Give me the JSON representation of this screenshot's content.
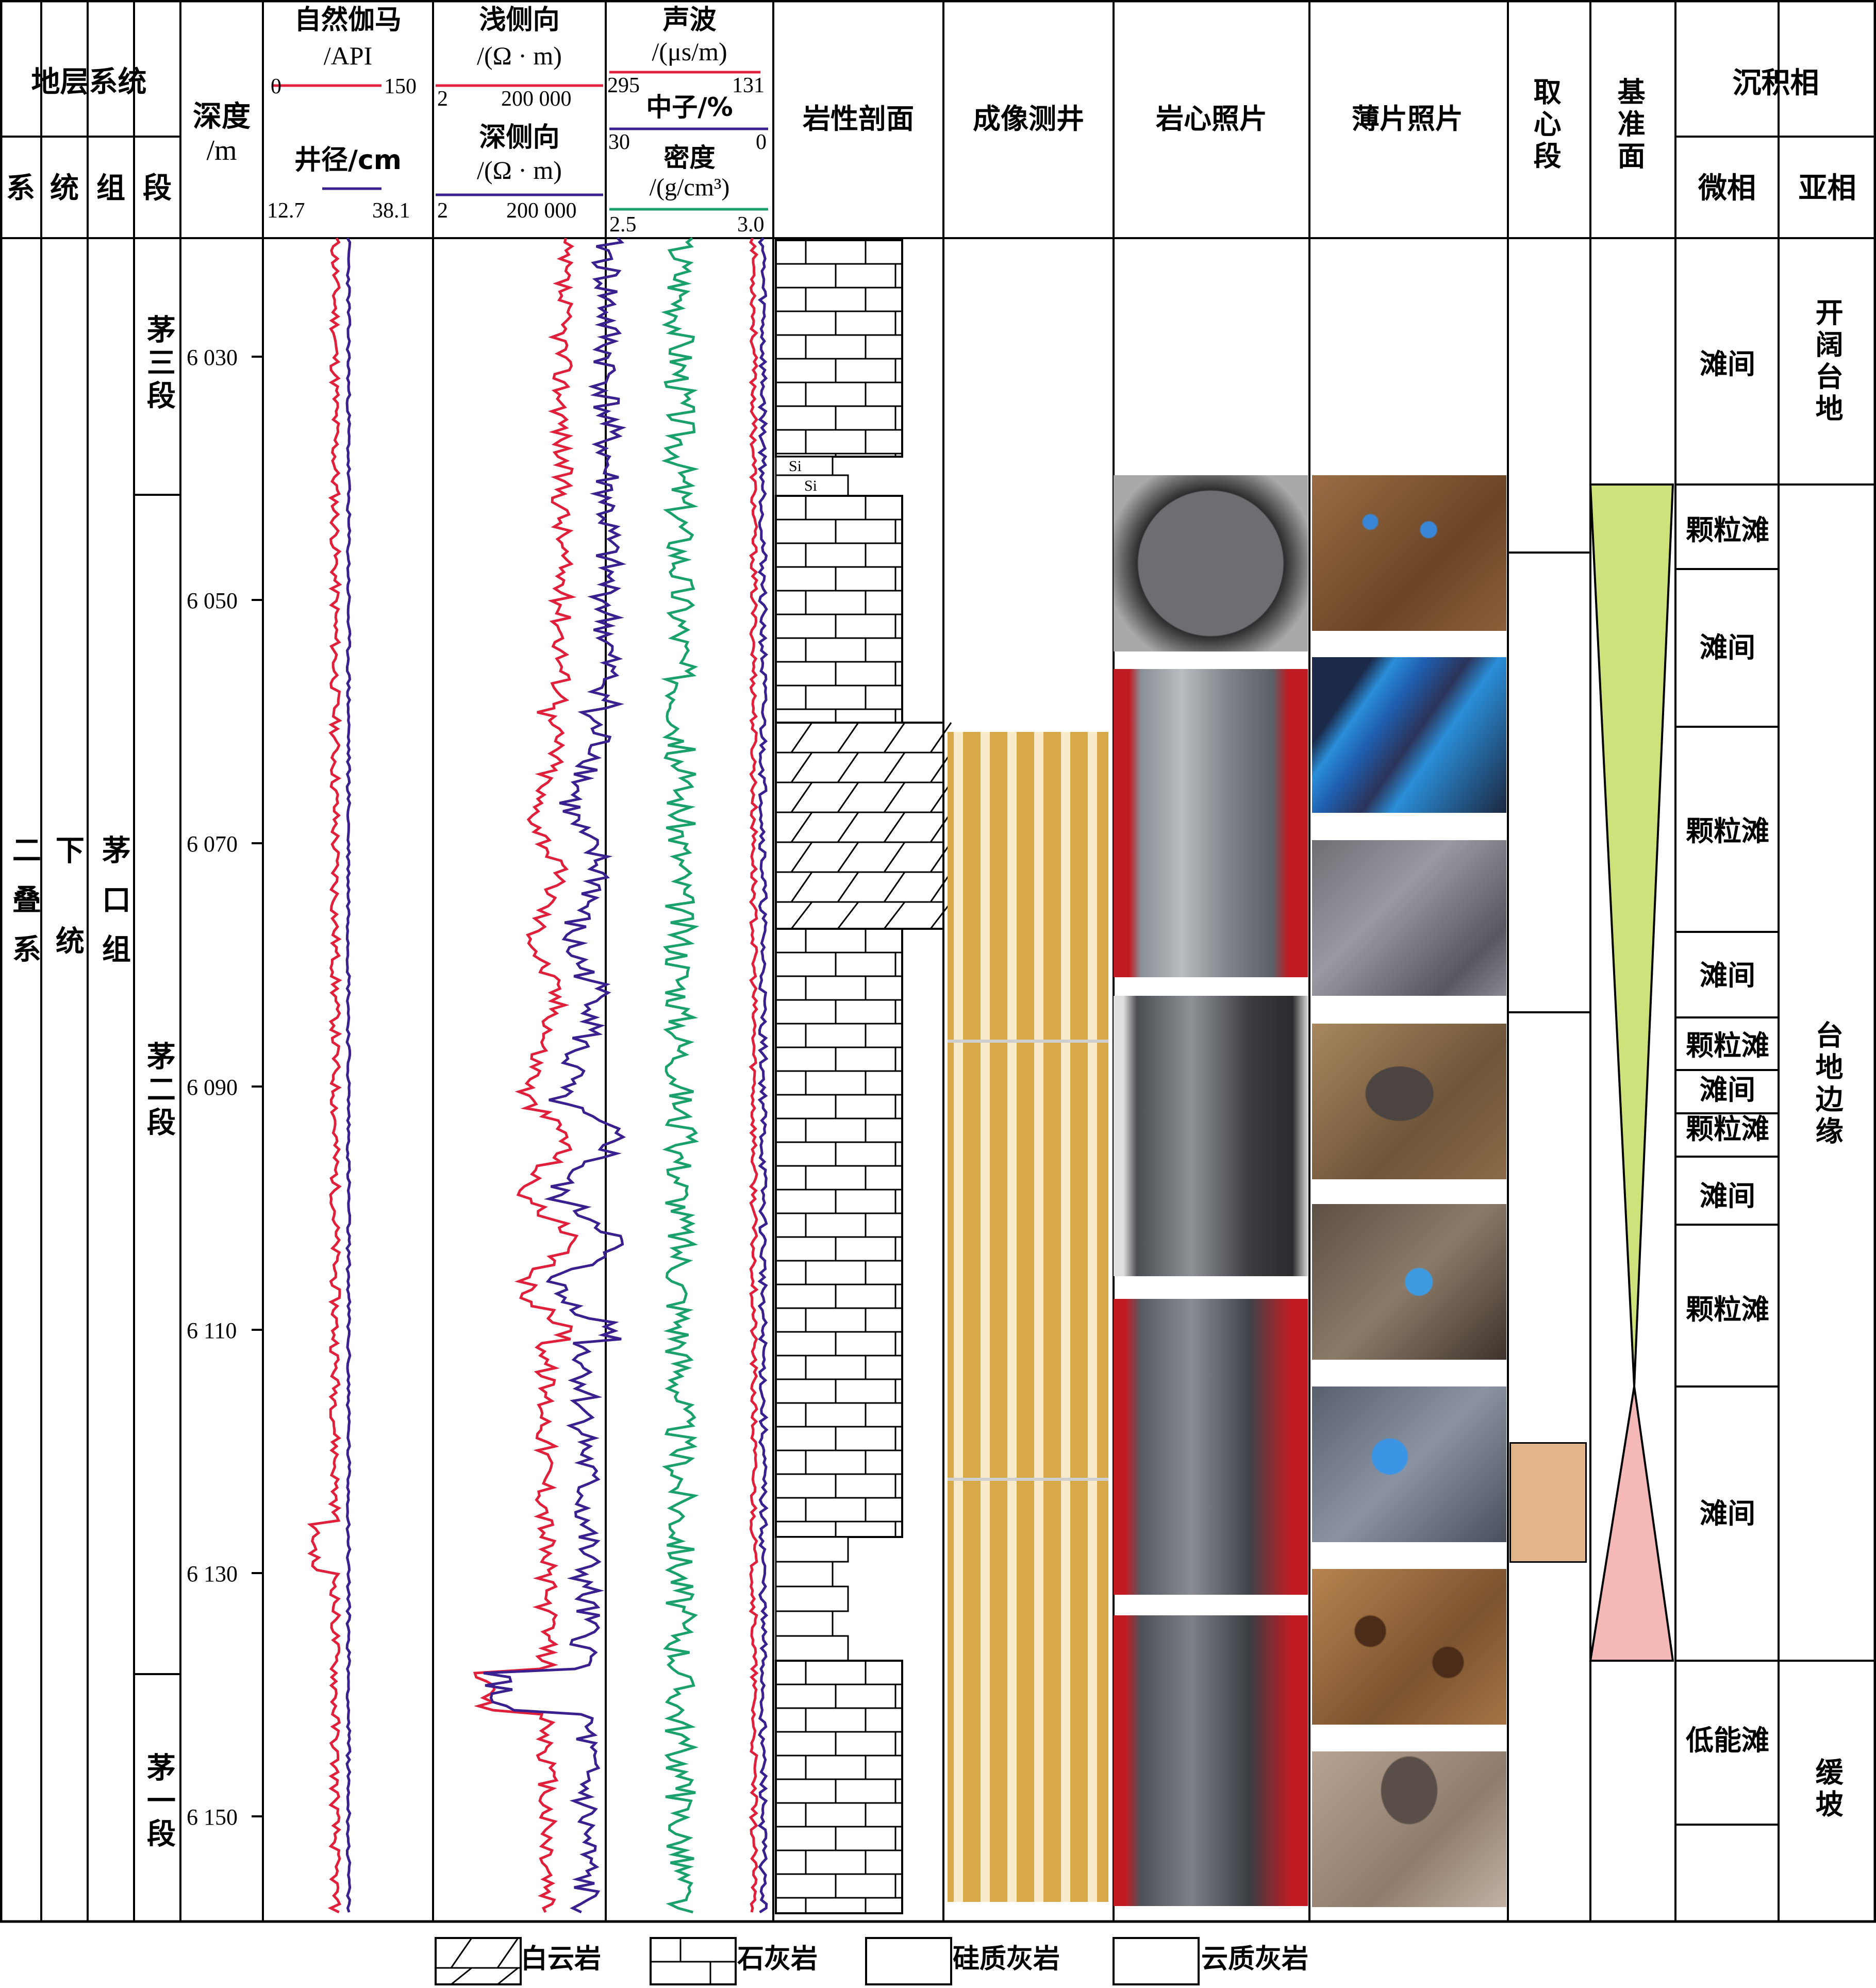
{
  "header": {
    "strat_system": "地层系统",
    "sub_cols": [
      "系",
      "统",
      "组",
      "段"
    ],
    "depth": "深度",
    "depth_unit": "/m",
    "gr_label": "自然伽马",
    "gr_unit": "/API",
    "gr_min": "0",
    "gr_max": "150",
    "cal_label": "井径/cm",
    "cal_min": "12.7",
    "cal_max": "38.1",
    "lls_label": "浅侧向",
    "lls_unit": "/(Ω · m)",
    "lls_min": "2",
    "lls_max": "200 000",
    "lld_label": "深侧向",
    "lld_unit": "/(Ω · m)",
    "lld_min": "2",
    "lld_max": "200 000",
    "ac_label": "声波",
    "ac_unit": "/(μs/m)",
    "ac_min": "295",
    "ac_max": "131",
    "cnl_label": "中子/%",
    "cnl_min": "30",
    "cnl_max": "0",
    "den_label": "密度",
    "den_unit": "/(g/cm³)",
    "den_min": "2.5",
    "den_max": "3.0",
    "lithology": "岩性剖面",
    "imaging": "成像测井",
    "core_photo": "岩心照片",
    "thin_section": "薄片照片",
    "coring": "取心段",
    "base_level": "基准面",
    "facies": "沉积相",
    "micro_facies": "微相",
    "sub_facies": "亚相"
  },
  "strat": {
    "system": "二叠系",
    "series": "下统",
    "formation": "茅口组",
    "members": [
      "茅三段",
      "茅二段",
      "茅一段"
    ]
  },
  "depth_ticks": [
    "6 030",
    "6 050",
    "6 070",
    "6 090",
    "6 110",
    "6 130",
    "6 150"
  ],
  "micro_facies": [
    "滩间",
    "颗粒滩",
    "滩间",
    "颗粒滩",
    "滩间",
    "颗粒滩",
    "滩间",
    "颗粒滩",
    "滩间",
    "颗粒滩",
    "滩间",
    "低能滩"
  ],
  "sub_facies": [
    "开阔台地",
    "台地边缘",
    "缓坡"
  ],
  "legend": {
    "dolomite": "白云岩",
    "limestone": "石灰岩",
    "siliceous_limestone": "硅质灰岩",
    "dolomitic_limestone": "云质灰岩",
    "si_mark": "Si"
  },
  "colors": {
    "gr": "#e0203a",
    "cal": "#3a1f8f",
    "lls": "#e0203a",
    "lld": "#3a1f8f",
    "ac": "#e0203a",
    "cnl": "#3a1f8f",
    "den": "#1aa06a",
    "base_rise": "#cde27a",
    "base_fall": "#f4b8b6",
    "coring": "#e2b48a"
  }
}
